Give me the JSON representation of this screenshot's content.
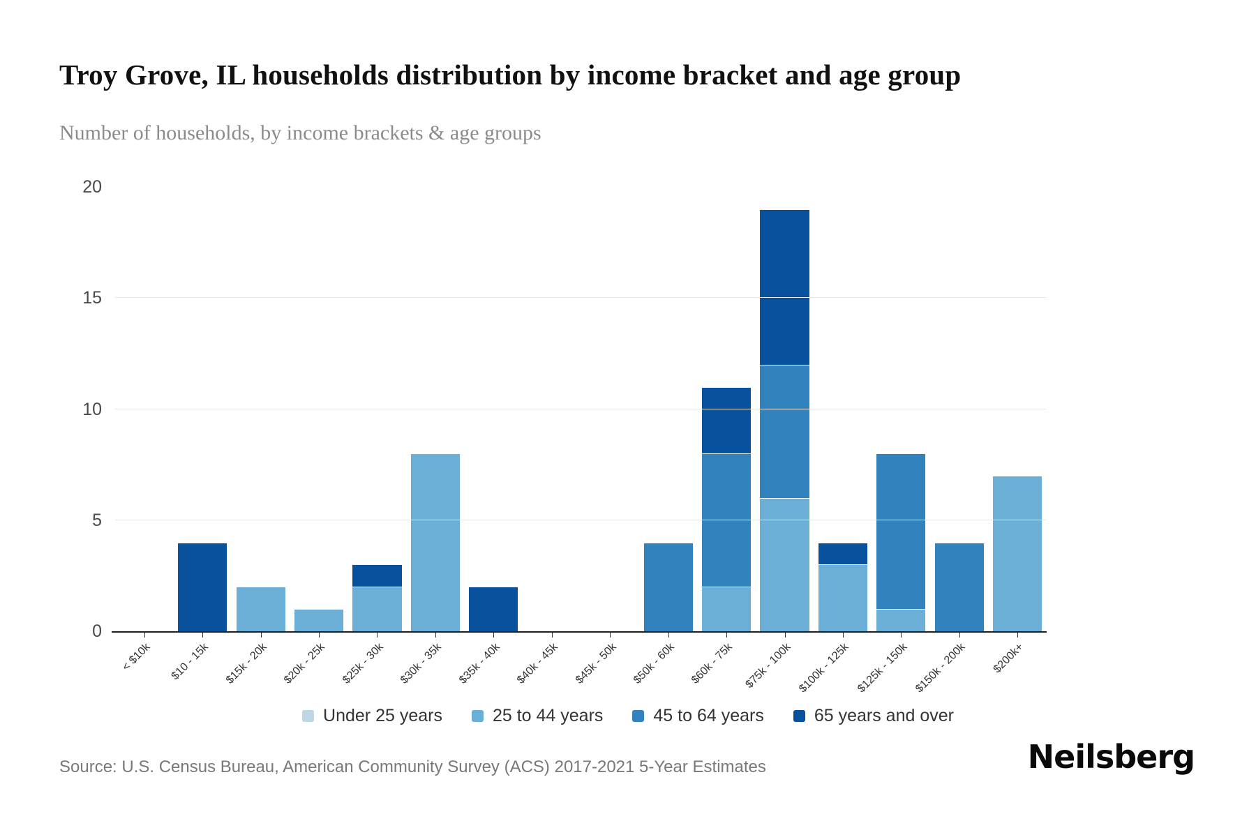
{
  "page": {
    "source": "Source: U.S. Census Bureau, American Community Survey (ACS) 2017-2021 5-Year Estimates",
    "logo": "Neilsberg"
  },
  "chart_data": {
    "type": "bar",
    "stacked": true,
    "title": "Troy Grove, IL households distribution by income bracket and age group",
    "subtitle": "Number of households, by income brackets & age groups",
    "xlabel": "",
    "ylabel": "Number of households",
    "ylim": [
      0,
      20
    ],
    "yticks": [
      0,
      5,
      10,
      15,
      20
    ],
    "gridlines": [
      5,
      10,
      15
    ],
    "grid": true,
    "legend_position": "bottom",
    "categories": [
      "< $10k",
      "$10 - 15k",
      "$15k - 20k",
      "$20k - 25k",
      "$25k - 30k",
      "$30k - 35k",
      "$35k - 40k",
      "$40k - 45k",
      "$45k - 50k",
      "$50k - 60k",
      "$60k - 75k",
      "$75k - 100k",
      "$100k - 125k",
      "$125k - 150k",
      "$150k - 200k",
      "$200k+"
    ],
    "series": [
      {
        "name": "Under 25 years",
        "color": "#bdd7e7",
        "values": [
          0,
          0,
          0,
          0,
          0,
          0,
          0,
          0,
          0,
          0,
          0,
          0,
          0,
          0,
          0,
          0
        ]
      },
      {
        "name": "25 to 44 years",
        "color": "#6baed6",
        "values": [
          0,
          0,
          2,
          1,
          2,
          8,
          0,
          0,
          0,
          0,
          2,
          6,
          3,
          1,
          0,
          7
        ]
      },
      {
        "name": "45 to 64 years",
        "color": "#3182bd",
        "values": [
          0,
          0,
          0,
          0,
          0,
          0,
          0,
          0,
          0,
          4,
          6,
          6,
          0,
          7,
          4,
          0
        ]
      },
      {
        "name": "65 years and over",
        "color": "#08519c",
        "values": [
          0,
          4,
          0,
          0,
          1,
          0,
          2,
          0,
          0,
          0,
          3,
          7,
          1,
          0,
          0,
          0
        ]
      }
    ],
    "totals": [
      0,
      4,
      2,
      1,
      3,
      8,
      2,
      0,
      0,
      4,
      11,
      19,
      4,
      8,
      4,
      7
    ]
  }
}
